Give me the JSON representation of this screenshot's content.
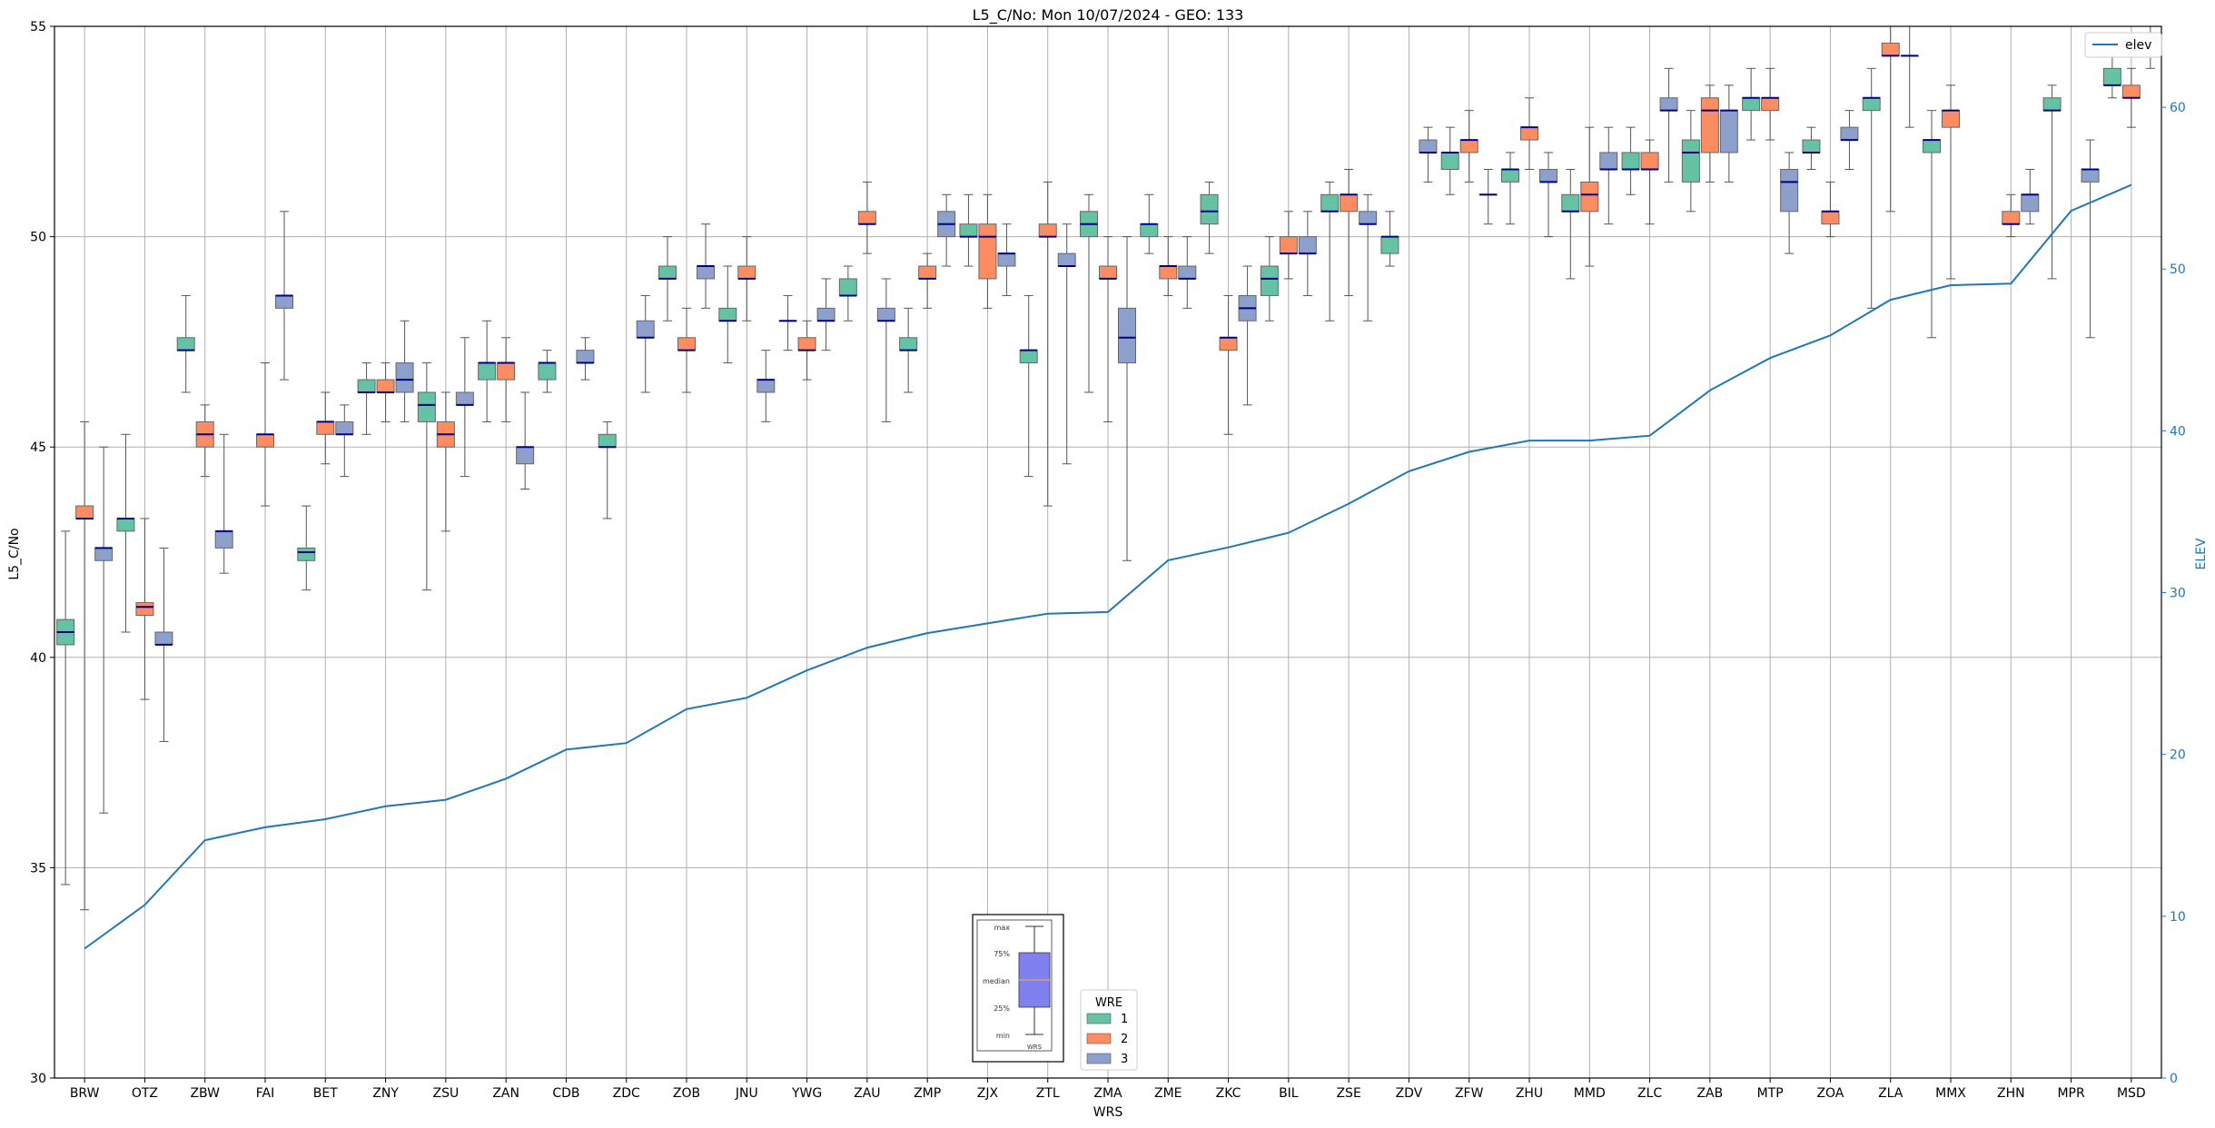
{
  "chart_data": {
    "type": "boxplot",
    "title": "L5_C/No: Mon 10/07/2024 - GEO: 133",
    "xlabel": "WRS",
    "ylabel": "L5_C/No",
    "y2label": "ELEV",
    "ylim": [
      30,
      55
    ],
    "y2lim": [
      0,
      65
    ],
    "yticks": [
      30,
      35,
      40,
      45,
      50,
      55
    ],
    "y2ticks": [
      0,
      10,
      20,
      30,
      40,
      50,
      60
    ],
    "grid": true,
    "categories": [
      "BRW",
      "OTZ",
      "ZBW",
      "FAI",
      "BET",
      "ZNY",
      "ZSU",
      "ZAN",
      "CDB",
      "ZDC",
      "ZOB",
      "JNU",
      "YWG",
      "ZAU",
      "ZMP",
      "ZJX",
      "ZTL",
      "ZMA",
      "ZME",
      "ZKC",
      "BIL",
      "ZSE",
      "ZDV",
      "ZFW",
      "ZHU",
      "MMD",
      "ZLC",
      "ZAB",
      "MTP",
      "ZOA",
      "ZLA",
      "MMX",
      "ZHN",
      "MPR",
      "MSD"
    ],
    "colors": {
      "1": "#66c2a5",
      "2": "#fc8d62",
      "3": "#8da0cb",
      "line": "#1f77b4",
      "median": "#00008b"
    },
    "wre_legend": {
      "title": "WRE",
      "entries": [
        "1",
        "2",
        "3"
      ]
    },
    "line_legend": "elev",
    "inset_labels": [
      "max",
      "75%",
      "median",
      "25%",
      "min",
      "WRS"
    ],
    "elev": [
      8.0,
      10.7,
      14.7,
      15.5,
      16.0,
      16.8,
      17.2,
      18.5,
      20.3,
      20.7,
      22.8,
      23.5,
      25.2,
      26.6,
      27.5,
      28.1,
      28.7,
      28.8,
      32.0,
      32.8,
      33.7,
      35.5,
      37.5,
      38.7,
      39.4,
      39.4,
      39.7,
      42.5,
      44.5,
      45.9,
      48.1,
      49.0,
      49.1,
      53.6,
      55.2
    ],
    "series": [
      {
        "name": "1",
        "boxes": [
          {
            "cat": "BRW",
            "min": 34.6,
            "q1": 40.3,
            "median": 40.6,
            "q3": 40.9,
            "max": 43.0
          },
          {
            "cat": "OTZ",
            "min": 40.6,
            "q1": 43.0,
            "median": 43.3,
            "q3": 43.3,
            "max": 45.3
          },
          {
            "cat": "ZBW",
            "min": 46.3,
            "q1": 47.3,
            "median": 47.3,
            "q3": 47.6,
            "max": 48.6
          },
          {
            "cat": "BET",
            "min": 41.6,
            "q1": 42.3,
            "median": 42.5,
            "q3": 42.6,
            "max": 43.6
          },
          {
            "cat": "ZNY",
            "min": 45.3,
            "q1": 46.3,
            "median": 46.3,
            "q3": 46.6,
            "max": 47.0
          },
          {
            "cat": "ZSU",
            "min": 41.6,
            "q1": 45.6,
            "median": 46.0,
            "q3": 46.3,
            "max": 47.0
          },
          {
            "cat": "ZAN",
            "min": 45.6,
            "q1": 46.6,
            "median": 47.0,
            "q3": 47.0,
            "max": 48.0
          },
          {
            "cat": "CDB",
            "min": 46.3,
            "q1": 46.6,
            "median": 47.0,
            "q3": 47.0,
            "max": 47.3
          },
          {
            "cat": "ZDC",
            "min": 43.3,
            "q1": 45.0,
            "median": 45.0,
            "q3": 45.3,
            "max": 45.6
          },
          {
            "cat": "ZOB",
            "min": 48.0,
            "q1": 49.0,
            "median": 49.0,
            "q3": 49.3,
            "max": 50.0
          },
          {
            "cat": "JNU",
            "min": 47.0,
            "q1": 48.0,
            "median": 48.0,
            "q3": 48.3,
            "max": 49.3
          },
          {
            "cat": "YWG",
            "min": 47.3,
            "q1": 48.0,
            "median": 48.0,
            "q3": 48.0,
            "max": 48.6
          },
          {
            "cat": "ZAU",
            "min": 48.0,
            "q1": 48.6,
            "median": 48.6,
            "q3": 49.0,
            "max": 49.3
          },
          {
            "cat": "ZMP",
            "min": 46.3,
            "q1": 47.3,
            "median": 47.3,
            "q3": 47.6,
            "max": 48.3
          },
          {
            "cat": "ZJX",
            "min": 49.3,
            "q1": 50.0,
            "median": 50.0,
            "q3": 50.3,
            "max": 51.0
          },
          {
            "cat": "ZTL",
            "min": 44.3,
            "q1": 47.0,
            "median": 47.3,
            "q3": 47.3,
            "max": 48.6
          },
          {
            "cat": "ZMA",
            "min": 46.3,
            "q1": 50.0,
            "median": 50.3,
            "q3": 50.6,
            "max": 51.0
          },
          {
            "cat": "ZME",
            "min": 49.6,
            "q1": 50.0,
            "median": 50.3,
            "q3": 50.3,
            "max": 51.0
          },
          {
            "cat": "ZKC",
            "min": 49.6,
            "q1": 50.3,
            "median": 50.6,
            "q3": 51.0,
            "max": 51.3
          },
          {
            "cat": "BIL",
            "min": 48.0,
            "q1": 48.6,
            "median": 49.0,
            "q3": 49.3,
            "max": 50.0
          },
          {
            "cat": "ZSE",
            "min": 48.0,
            "q1": 50.6,
            "median": 50.6,
            "q3": 51.0,
            "max": 51.3
          },
          {
            "cat": "ZDV",
            "min": 49.3,
            "q1": 49.6,
            "median": 50.0,
            "q3": 50.0,
            "max": 50.6
          },
          {
            "cat": "ZFW",
            "min": 51.0,
            "q1": 51.6,
            "median": 52.0,
            "q3": 52.0,
            "max": 52.6
          },
          {
            "cat": "ZHU",
            "min": 50.3,
            "q1": 51.3,
            "median": 51.6,
            "q3": 51.6,
            "max": 52.0
          },
          {
            "cat": "MMD",
            "min": 49.0,
            "q1": 50.6,
            "median": 50.6,
            "q3": 51.0,
            "max": 51.6
          },
          {
            "cat": "ZLC",
            "min": 51.0,
            "q1": 51.6,
            "median": 51.6,
            "q3": 52.0,
            "max": 52.6
          },
          {
            "cat": "ZAB",
            "min": 50.6,
            "q1": 51.3,
            "median": 52.0,
            "q3": 52.3,
            "max": 53.0
          },
          {
            "cat": "MTP",
            "min": 52.3,
            "q1": 53.0,
            "median": 53.3,
            "q3": 53.3,
            "max": 54.0
          },
          {
            "cat": "ZOA",
            "min": 51.6,
            "q1": 52.0,
            "median": 52.0,
            "q3": 52.3,
            "max": 52.6
          },
          {
            "cat": "ZLA",
            "min": 48.3,
            "q1": 53.0,
            "median": 53.3,
            "q3": 53.3,
            "max": 54.0
          },
          {
            "cat": "MMX",
            "min": 47.6,
            "q1": 52.0,
            "median": 52.3,
            "q3": 52.3,
            "max": 53.0
          },
          {
            "cat": "MPR",
            "min": 49.0,
            "q1": 53.0,
            "median": 53.0,
            "q3": 53.3,
            "max": 53.6
          },
          {
            "cat": "MSD",
            "min": 53.3,
            "q1": 53.6,
            "median": 53.6,
            "q3": 54.0,
            "max": 54.3
          }
        ]
      },
      {
        "name": "2",
        "boxes": [
          {
            "cat": "BRW",
            "min": 34.0,
            "q1": 43.3,
            "median": 43.3,
            "q3": 43.6,
            "max": 45.6
          },
          {
            "cat": "OTZ",
            "min": 39.0,
            "q1": 41.0,
            "median": 41.2,
            "q3": 41.3,
            "max": 43.3
          },
          {
            "cat": "ZBW",
            "min": 44.3,
            "q1": 45.0,
            "median": 45.3,
            "q3": 45.6,
            "max": 46.0
          },
          {
            "cat": "FAI",
            "min": 43.6,
            "q1": 45.0,
            "median": 45.3,
            "q3": 45.3,
            "max": 47.0
          },
          {
            "cat": "BET",
            "min": 44.6,
            "q1": 45.3,
            "median": 45.6,
            "q3": 45.6,
            "max": 46.3
          },
          {
            "cat": "ZNY",
            "min": 45.6,
            "q1": 46.3,
            "median": 46.3,
            "q3": 46.6,
            "max": 47.0
          },
          {
            "cat": "ZSU",
            "min": 43.0,
            "q1": 45.0,
            "median": 45.3,
            "q3": 45.6,
            "max": 46.3
          },
          {
            "cat": "ZAN",
            "min": 45.6,
            "q1": 46.6,
            "median": 47.0,
            "q3": 47.0,
            "max": 47.6
          },
          {
            "cat": "ZOB",
            "min": 46.3,
            "q1": 47.3,
            "median": 47.3,
            "q3": 47.6,
            "max": 48.3
          },
          {
            "cat": "JNU",
            "min": 48.0,
            "q1": 49.0,
            "median": 49.0,
            "q3": 49.3,
            "max": 50.0
          },
          {
            "cat": "YWG",
            "min": 46.6,
            "q1": 47.3,
            "median": 47.3,
            "q3": 47.6,
            "max": 48.0
          },
          {
            "cat": "ZAU",
            "min": 49.6,
            "q1": 50.3,
            "median": 50.3,
            "q3": 50.6,
            "max": 51.3
          },
          {
            "cat": "ZMP",
            "min": 48.3,
            "q1": 49.0,
            "median": 49.0,
            "q3": 49.3,
            "max": 49.6
          },
          {
            "cat": "ZJX",
            "min": 48.3,
            "q1": 49.0,
            "median": 50.0,
            "q3": 50.3,
            "max": 51.0
          },
          {
            "cat": "ZTL",
            "min": 43.6,
            "q1": 50.0,
            "median": 50.0,
            "q3": 50.3,
            "max": 51.3
          },
          {
            "cat": "ZMA",
            "min": 45.6,
            "q1": 49.0,
            "median": 49.0,
            "q3": 49.3,
            "max": 50.0
          },
          {
            "cat": "ZME",
            "min": 48.6,
            "q1": 49.0,
            "median": 49.3,
            "q3": 49.3,
            "max": 50.0
          },
          {
            "cat": "ZKC",
            "min": 45.3,
            "q1": 47.3,
            "median": 47.6,
            "q3": 47.6,
            "max": 48.6
          },
          {
            "cat": "BIL",
            "min": 49.0,
            "q1": 49.6,
            "median": 49.6,
            "q3": 50.0,
            "max": 50.6
          },
          {
            "cat": "ZSE",
            "min": 48.6,
            "q1": 50.6,
            "median": 51.0,
            "q3": 51.0,
            "max": 51.6
          },
          {
            "cat": "ZFW",
            "min": 51.3,
            "q1": 52.0,
            "median": 52.3,
            "q3": 52.3,
            "max": 53.0
          },
          {
            "cat": "ZHU",
            "min": 51.6,
            "q1": 52.3,
            "median": 52.6,
            "q3": 52.6,
            "max": 53.3
          },
          {
            "cat": "MMD",
            "min": 49.3,
            "q1": 50.6,
            "median": 51.0,
            "q3": 51.3,
            "max": 52.6
          },
          {
            "cat": "ZLC",
            "min": 50.3,
            "q1": 51.6,
            "median": 51.6,
            "q3": 52.0,
            "max": 52.3
          },
          {
            "cat": "ZAB",
            "min": 51.3,
            "q1": 52.0,
            "median": 53.0,
            "q3": 53.3,
            "max": 53.6
          },
          {
            "cat": "MTP",
            "min": 52.3,
            "q1": 53.0,
            "median": 53.3,
            "q3": 53.3,
            "max": 54.0
          },
          {
            "cat": "ZOA",
            "min": 50.0,
            "q1": 50.3,
            "median": 50.6,
            "q3": 50.6,
            "max": 51.3
          },
          {
            "cat": "ZLA",
            "min": 50.6,
            "q1": 54.3,
            "median": 54.3,
            "q3": 54.6,
            "max": 55.0
          },
          {
            "cat": "MMX",
            "min": 49.0,
            "q1": 52.6,
            "median": 53.0,
            "q3": 53.0,
            "max": 53.6
          },
          {
            "cat": "ZHN",
            "min": 50.0,
            "q1": 50.3,
            "median": 50.3,
            "q3": 50.6,
            "max": 51.0
          },
          {
            "cat": "MSD",
            "min": 52.6,
            "q1": 53.3,
            "median": 53.3,
            "q3": 53.6,
            "max": 54.0
          }
        ]
      },
      {
        "name": "3",
        "boxes": [
          {
            "cat": "BRW",
            "min": 36.3,
            "q1": 42.3,
            "median": 42.6,
            "q3": 42.6,
            "max": 45.0
          },
          {
            "cat": "OTZ",
            "min": 38.0,
            "q1": 40.3,
            "median": 40.3,
            "q3": 40.6,
            "max": 42.6
          },
          {
            "cat": "ZBW",
            "min": 42.0,
            "q1": 42.6,
            "median": 43.0,
            "q3": 43.0,
            "max": 45.3
          },
          {
            "cat": "FAI",
            "min": 46.6,
            "q1": 48.3,
            "median": 48.6,
            "q3": 48.6,
            "max": 50.6
          },
          {
            "cat": "BET",
            "min": 44.3,
            "q1": 45.3,
            "median": 45.3,
            "q3": 45.6,
            "max": 46.0
          },
          {
            "cat": "ZNY",
            "min": 45.6,
            "q1": 46.3,
            "median": 46.6,
            "q3": 47.0,
            "max": 48.0
          },
          {
            "cat": "ZSU",
            "min": 44.3,
            "q1": 46.0,
            "median": 46.0,
            "q3": 46.3,
            "max": 47.6
          },
          {
            "cat": "ZAN",
            "min": 44.0,
            "q1": 44.6,
            "median": 45.0,
            "q3": 45.0,
            "max": 46.3
          },
          {
            "cat": "CDB",
            "min": 46.6,
            "q1": 47.0,
            "median": 47.0,
            "q3": 47.3,
            "max": 47.6
          },
          {
            "cat": "ZDC",
            "min": 46.3,
            "q1": 47.6,
            "median": 47.6,
            "q3": 48.0,
            "max": 48.6
          },
          {
            "cat": "ZOB",
            "min": 48.3,
            "q1": 49.0,
            "median": 49.3,
            "q3": 49.3,
            "max": 50.3
          },
          {
            "cat": "JNU",
            "min": 45.6,
            "q1": 46.3,
            "median": 46.6,
            "q3": 46.6,
            "max": 47.3
          },
          {
            "cat": "YWG",
            "min": 47.3,
            "q1": 48.0,
            "median": 48.0,
            "q3": 48.3,
            "max": 49.0
          },
          {
            "cat": "ZAU",
            "min": 45.6,
            "q1": 48.0,
            "median": 48.0,
            "q3": 48.3,
            "max": 49.0
          },
          {
            "cat": "ZMP",
            "min": 49.3,
            "q1": 50.0,
            "median": 50.3,
            "q3": 50.6,
            "max": 51.0
          },
          {
            "cat": "ZJX",
            "min": 48.6,
            "q1": 49.3,
            "median": 49.6,
            "q3": 49.6,
            "max": 50.3
          },
          {
            "cat": "ZTL",
            "min": 44.6,
            "q1": 49.3,
            "median": 49.3,
            "q3": 49.6,
            "max": 50.3
          },
          {
            "cat": "ZMA",
            "min": 42.3,
            "q1": 47.0,
            "median": 47.6,
            "q3": 48.3,
            "max": 50.0
          },
          {
            "cat": "ZME",
            "min": 48.3,
            "q1": 49.0,
            "median": 49.0,
            "q3": 49.3,
            "max": 50.0
          },
          {
            "cat": "ZKC",
            "min": 46.0,
            "q1": 48.0,
            "median": 48.3,
            "q3": 48.6,
            "max": 49.3
          },
          {
            "cat": "BIL",
            "min": 48.6,
            "q1": 49.6,
            "median": 49.6,
            "q3": 50.0,
            "max": 50.6
          },
          {
            "cat": "ZSE",
            "min": 48.0,
            "q1": 50.3,
            "median": 50.3,
            "q3": 50.6,
            "max": 51.0
          },
          {
            "cat": "ZDV",
            "min": 51.3,
            "q1": 52.0,
            "median": 52.0,
            "q3": 52.3,
            "max": 52.6
          },
          {
            "cat": "ZFW",
            "min": 50.3,
            "q1": 51.0,
            "median": 51.0,
            "q3": 51.0,
            "max": 51.6
          },
          {
            "cat": "ZHU",
            "min": 50.0,
            "q1": 51.3,
            "median": 51.3,
            "q3": 51.6,
            "max": 52.0
          },
          {
            "cat": "MMD",
            "min": 50.3,
            "q1": 51.6,
            "median": 51.6,
            "q3": 52.0,
            "max": 52.6
          },
          {
            "cat": "ZLC",
            "min": 51.3,
            "q1": 53.0,
            "median": 53.0,
            "q3": 53.3,
            "max": 54.0
          },
          {
            "cat": "ZAB",
            "min": 51.3,
            "q1": 52.0,
            "median": 53.0,
            "q3": 53.0,
            "max": 53.6
          },
          {
            "cat": "MTP",
            "min": 49.6,
            "q1": 50.6,
            "median": 51.3,
            "q3": 51.6,
            "max": 52.0
          },
          {
            "cat": "ZOA",
            "min": 51.6,
            "q1": 52.3,
            "median": 52.3,
            "q3": 52.6,
            "max": 53.0
          },
          {
            "cat": "ZLA",
            "min": 52.6,
            "q1": 54.3,
            "median": 54.3,
            "q3": 54.3,
            "max": 55.0
          },
          {
            "cat": "ZHN",
            "min": 50.3,
            "q1": 50.6,
            "median": 51.0,
            "q3": 51.0,
            "max": 51.6
          },
          {
            "cat": "MPR",
            "min": 47.6,
            "q1": 51.3,
            "median": 51.6,
            "q3": 51.6,
            "max": 52.3
          },
          {
            "cat": "MSD",
            "min": 54.0,
            "q1": 54.3,
            "median": 54.3,
            "q3": 54.6,
            "max": 55.0
          }
        ]
      }
    ]
  }
}
